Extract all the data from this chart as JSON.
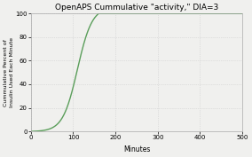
{
  "title": "OpenAPS Cummulative \"activity,\" DIA=3",
  "xlabel": "Minutes",
  "ylabel": "Cummulative Percent of\nInsulin Used Each Minute",
  "xlim": [
    0,
    500
  ],
  "ylim": [
    0,
    100
  ],
  "xticks": [
    0,
    100,
    200,
    300,
    400,
    500
  ],
  "yticks": [
    0,
    20,
    40,
    60,
    80,
    100
  ],
  "line_color": "#5a9e5a",
  "background_color": "#f0f0ee",
  "grid_color": "#cccccc",
  "inflection": 110,
  "steepness": 0.058,
  "end_minutes": 160
}
